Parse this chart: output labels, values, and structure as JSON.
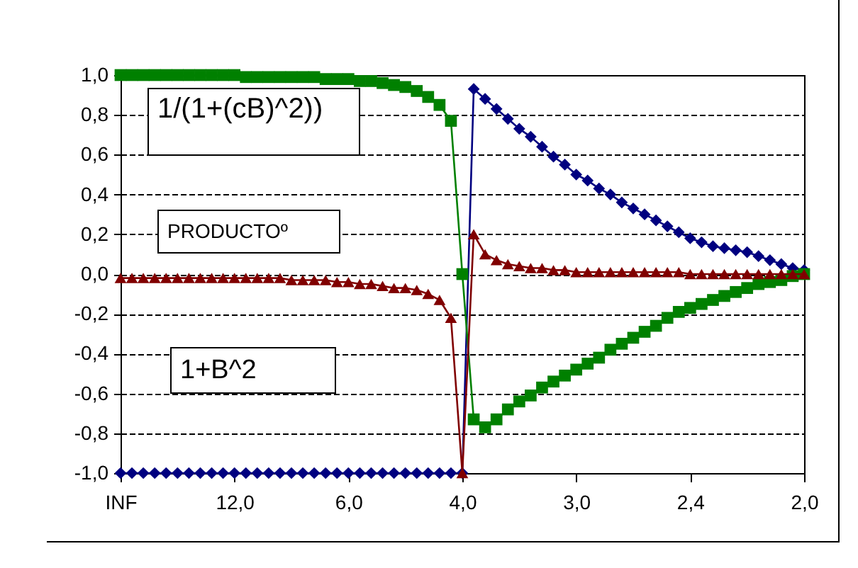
{
  "chart_data": {
    "type": "line",
    "categories": [
      "INF",
      null,
      null,
      null,
      null,
      null,
      null,
      null,
      null,
      null,
      "12,0",
      null,
      null,
      null,
      null,
      null,
      null,
      null,
      null,
      null,
      "6,0",
      null,
      null,
      null,
      null,
      null,
      null,
      null,
      null,
      null,
      "4,0",
      null,
      null,
      null,
      null,
      null,
      null,
      null,
      null,
      null,
      "3,0",
      null,
      null,
      null,
      null,
      null,
      null,
      null,
      null,
      null,
      "2,4",
      null,
      null,
      null,
      null,
      null,
      null,
      null,
      null,
      null,
      "2,0"
    ],
    "series": [
      {
        "color": "#000080",
        "marker": "diamond",
        "values": [
          -1,
          -1,
          -1,
          -1,
          -1,
          -1,
          -1,
          -1,
          -1,
          -1,
          -1,
          -1,
          -1,
          -1,
          -1,
          -1,
          -1,
          -1,
          -1,
          -1,
          -1,
          -1,
          -1,
          -1,
          -1,
          -1,
          -1,
          -1,
          -1,
          -1,
          -1,
          0.93,
          0.88,
          0.83,
          0.78,
          0.73,
          0.69,
          0.64,
          0.59,
          0.55,
          0.5,
          0.47,
          0.43,
          0.4,
          0.36,
          0.33,
          0.3,
          0.27,
          0.24,
          0.21,
          0.18,
          0.16,
          0.14,
          0.13,
          0.12,
          0.11,
          0.09,
          0.07,
          0.05,
          0.03,
          0.02
        ]
      },
      {
        "color": "#008000",
        "marker": "square",
        "values": [
          1,
          1,
          1,
          1,
          1,
          1,
          1,
          1,
          1,
          1,
          1,
          0.99,
          0.99,
          0.99,
          0.99,
          0.99,
          0.99,
          0.99,
          0.98,
          0.98,
          0.98,
          0.97,
          0.97,
          0.96,
          0.95,
          0.94,
          0.92,
          0.89,
          0.85,
          0.77,
          0,
          -0.73,
          -0.77,
          -0.73,
          -0.68,
          -0.64,
          -0.61,
          -0.57,
          -0.54,
          -0.51,
          -0.48,
          -0.45,
          -0.42,
          -0.38,
          -0.35,
          -0.32,
          -0.29,
          -0.26,
          -0.22,
          -0.19,
          -0.17,
          -0.15,
          -0.13,
          -0.11,
          -0.09,
          -0.07,
          -0.05,
          -0.04,
          -0.03,
          -0.01,
          0
        ]
      },
      {
        "color": "#800000",
        "marker": "triangle",
        "values": [
          -0.02,
          -0.02,
          -0.02,
          -0.02,
          -0.02,
          -0.02,
          -0.02,
          -0.02,
          -0.02,
          -0.02,
          -0.02,
          -0.02,
          -0.02,
          -0.02,
          -0.02,
          -0.03,
          -0.03,
          -0.03,
          -0.03,
          -0.04,
          -0.04,
          -0.05,
          -0.05,
          -0.06,
          -0.07,
          -0.07,
          -0.08,
          -0.1,
          -0.13,
          -0.22,
          -1,
          0.2,
          0.1,
          0.07,
          0.05,
          0.04,
          0.03,
          0.03,
          0.02,
          0.02,
          0.01,
          0.01,
          0.01,
          0.01,
          0.01,
          0.01,
          0.01,
          0.01,
          0.01,
          0.01,
          0,
          0,
          0,
          0,
          0,
          0,
          0,
          0,
          0,
          0,
          0
        ]
      }
    ],
    "ylim": [
      -1,
      1
    ],
    "yticks": [
      {
        "value": -1,
        "label": "-1,0"
      },
      {
        "value": -0.8,
        "label": "-0,8"
      },
      {
        "value": -0.6,
        "label": "-0,6"
      },
      {
        "value": -0.4,
        "label": "-0,4"
      },
      {
        "value": -0.2,
        "label": "-0,2"
      },
      {
        "value": 0,
        "label": "0,0"
      },
      {
        "value": 0.2,
        "label": "0,2"
      },
      {
        "value": 0.4,
        "label": "0,4"
      },
      {
        "value": 0.6,
        "label": "0,6"
      },
      {
        "value": 0.8,
        "label": "0,8"
      },
      {
        "value": 1,
        "label": "1,0"
      }
    ],
    "grid": "y",
    "line_style": "solid",
    "annotations": [
      "1/(1+(cB)^2))",
      "PRODUCTOº",
      "1+B^2"
    ]
  }
}
